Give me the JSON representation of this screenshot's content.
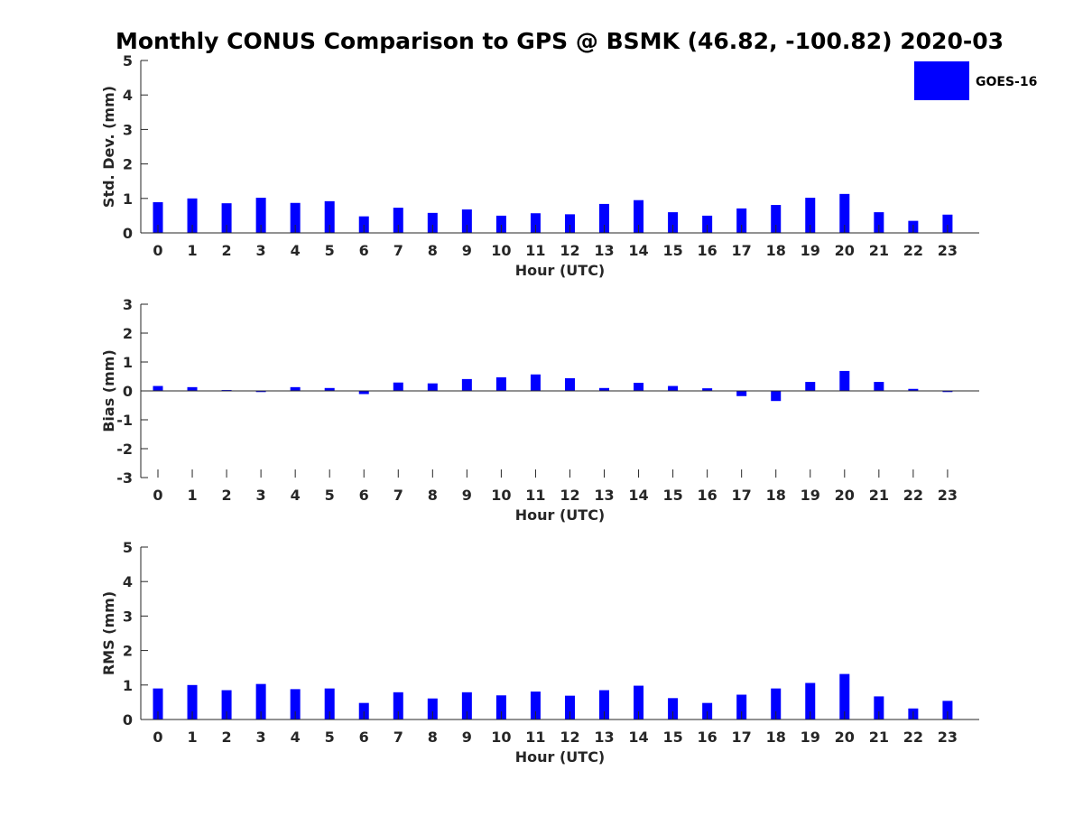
{
  "title": "Monthly CONUS Comparison to GPS @ BSMK (46.82, -100.82) 2020-03",
  "colors": {
    "bar": "#0000ff",
    "axis": "#262626",
    "background": "#ffffff"
  },
  "legend": {
    "label": "GOES-16",
    "position": "top-right"
  },
  "chart_data": [
    {
      "type": "bar",
      "xlabel": "Hour (UTC)",
      "ylabel": "Std. Dev. (mm)",
      "ylim": [
        0,
        5
      ],
      "yticks": [
        0,
        1,
        2,
        3,
        4,
        5
      ],
      "categories": [
        "0",
        "1",
        "2",
        "3",
        "4",
        "5",
        "6",
        "7",
        "8",
        "9",
        "10",
        "11",
        "12",
        "13",
        "14",
        "15",
        "16",
        "17",
        "18",
        "19",
        "20",
        "21",
        "22",
        "23"
      ],
      "series": [
        {
          "name": "GOES-16",
          "values": [
            0.89,
            1.0,
            0.86,
            1.02,
            0.87,
            0.92,
            0.48,
            0.73,
            0.58,
            0.68,
            0.5,
            0.57,
            0.54,
            0.84,
            0.95,
            0.6,
            0.5,
            0.71,
            0.81,
            1.02,
            1.13,
            0.6,
            0.35,
            0.53
          ]
        }
      ]
    },
    {
      "type": "bar",
      "xlabel": "Hour (UTC)",
      "ylabel": "Bias (mm)",
      "ylim": [
        -3,
        3
      ],
      "yticks": [
        -3,
        -2,
        -1,
        0,
        1,
        2,
        3
      ],
      "categories": [
        "0",
        "1",
        "2",
        "3",
        "4",
        "5",
        "6",
        "7",
        "8",
        "9",
        "10",
        "11",
        "12",
        "13",
        "14",
        "15",
        "16",
        "17",
        "18",
        "19",
        "20",
        "21",
        "22",
        "23"
      ],
      "series": [
        {
          "name": "GOES-16",
          "values": [
            0.17,
            0.13,
            0.03,
            -0.04,
            0.13,
            0.1,
            -0.11,
            0.29,
            0.26,
            0.41,
            0.47,
            0.57,
            0.44,
            0.1,
            0.28,
            0.17,
            0.09,
            -0.18,
            -0.35,
            0.31,
            0.69,
            0.31,
            0.07,
            -0.04
          ]
        }
      ]
    },
    {
      "type": "bar",
      "xlabel": "Hour (UTC)",
      "ylabel": "RMS (mm)",
      "ylim": [
        0,
        5
      ],
      "yticks": [
        0,
        1,
        2,
        3,
        4,
        5
      ],
      "categories": [
        "0",
        "1",
        "2",
        "3",
        "4",
        "5",
        "6",
        "7",
        "8",
        "9",
        "10",
        "11",
        "12",
        "13",
        "14",
        "15",
        "16",
        "17",
        "18",
        "19",
        "20",
        "21",
        "22",
        "23"
      ],
      "series": [
        {
          "name": "GOES-16",
          "values": [
            0.9,
            1.0,
            0.85,
            1.03,
            0.88,
            0.9,
            0.48,
            0.79,
            0.61,
            0.79,
            0.7,
            0.81,
            0.69,
            0.85,
            0.98,
            0.62,
            0.48,
            0.72,
            0.9,
            1.06,
            1.32,
            0.67,
            0.32,
            0.54
          ]
        }
      ]
    }
  ]
}
